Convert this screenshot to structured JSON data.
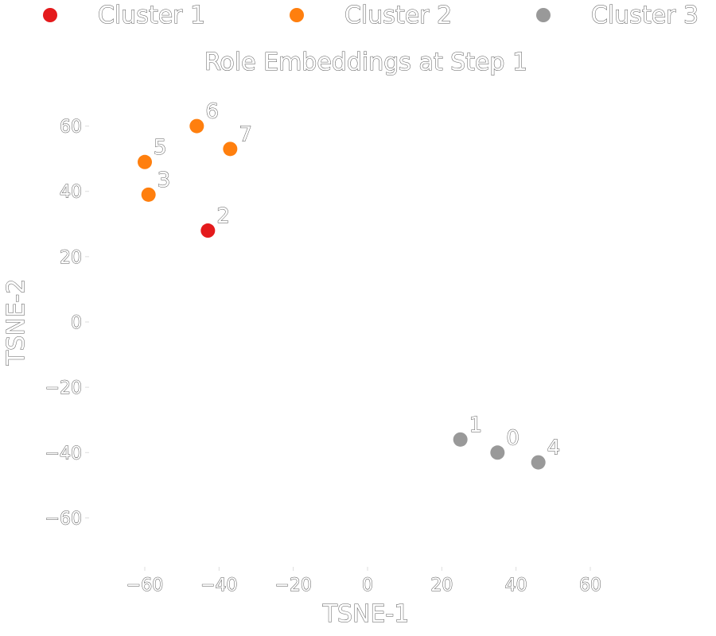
{
  "chart_data": {
    "type": "scatter",
    "title": "Role Embeddings at Step 1",
    "xlabel": "TSNE-1",
    "ylabel": "TSNE-2",
    "xlim": [
      -75,
      75
    ],
    "ylim": [
      -75,
      75
    ],
    "xticks": [
      -60,
      -40,
      -20,
      0,
      20,
      40,
      60
    ],
    "yticks": [
      -60,
      -40,
      -20,
      0,
      20,
      40,
      60
    ],
    "xtick_labels": [
      "−60",
      "−40",
      "−20",
      "0",
      "20",
      "40",
      "60"
    ],
    "ytick_labels": [
      "−60",
      "−40",
      "−20",
      "0",
      "20",
      "40",
      "60"
    ],
    "grid": false,
    "legend_placement": "top",
    "series": [
      {
        "name": "Cluster 1",
        "color": "#e41a1c",
        "points": [
          {
            "label": "2",
            "x": -43,
            "y": 28
          }
        ]
      },
      {
        "name": "Cluster 2",
        "color": "#ff7f0e",
        "points": [
          {
            "label": "6",
            "x": -46,
            "y": 60
          },
          {
            "label": "7",
            "x": -37,
            "y": 53
          },
          {
            "label": "5",
            "x": -60,
            "y": 49
          },
          {
            "label": "3",
            "x": -59,
            "y": 39
          }
        ]
      },
      {
        "name": "Cluster 3",
        "color": "#999999",
        "points": [
          {
            "label": "1",
            "x": 25,
            "y": -36
          },
          {
            "label": "0",
            "x": 35,
            "y": -40
          },
          {
            "label": "4",
            "x": 46,
            "y": -43
          }
        ]
      }
    ]
  }
}
